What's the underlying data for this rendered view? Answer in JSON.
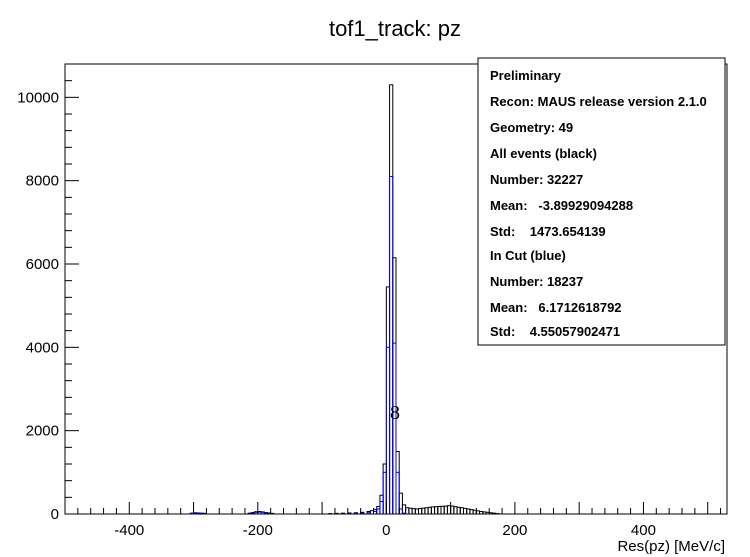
{
  "chart_data": {
    "type": "bar",
    "title": "tof1_track: pz",
    "xlabel": "Res(pz) [MeV/c]",
    "ylabel": "",
    "xlim": [
      -500,
      530
    ],
    "ylim": [
      0,
      10800
    ],
    "x_ticks": [
      -400,
      -200,
      0,
      200,
      400
    ],
    "y_ticks": [
      0,
      2000,
      4000,
      6000,
      8000,
      10000
    ],
    "bin_width": 5,
    "grid": false,
    "legend": "top-right",
    "annotation": "8",
    "stats_box": [
      "Preliminary",
      "Recon: MAUS release version 2.1.0",
      "Geometry: 49",
      "All events (black)",
      "Number: 32227",
      "Mean:   -3.89929094288",
      "Std:    1473.654139",
      "In Cut (blue)",
      "Number: 18237",
      "Mean:   6.1712618792",
      "Std:    4.55057902471"
    ],
    "series": [
      {
        "color": "#000000",
        "bins": [
          [
            -305,
            20
          ],
          [
            -300,
            30
          ],
          [
            -295,
            25
          ],
          [
            -290,
            20
          ],
          [
            -285,
            15
          ],
          [
            -215,
            20
          ],
          [
            -210,
            35
          ],
          [
            -205,
            55
          ],
          [
            -200,
            60
          ],
          [
            -195,
            50
          ],
          [
            -190,
            35
          ],
          [
            -185,
            25
          ],
          [
            -180,
            15
          ],
          [
            -90,
            10
          ],
          [
            -80,
            15
          ],
          [
            -70,
            20
          ],
          [
            -60,
            25
          ],
          [
            -50,
            30
          ],
          [
            -40,
            40
          ],
          [
            -30,
            60
          ],
          [
            -25,
            80
          ],
          [
            -20,
            110
          ],
          [
            -15,
            180
          ],
          [
            -10,
            450
          ],
          [
            -5,
            1200
          ],
          [
            0,
            5450
          ],
          [
            5,
            10300
          ],
          [
            10,
            6150
          ],
          [
            15,
            1500
          ],
          [
            20,
            500
          ],
          [
            25,
            220
          ],
          [
            30,
            150
          ],
          [
            35,
            140
          ],
          [
            40,
            130
          ],
          [
            45,
            120
          ],
          [
            50,
            130
          ],
          [
            55,
            140
          ],
          [
            60,
            150
          ],
          [
            65,
            160
          ],
          [
            70,
            170
          ],
          [
            75,
            175
          ],
          [
            80,
            180
          ],
          [
            85,
            185
          ],
          [
            90,
            190
          ],
          [
            95,
            200
          ],
          [
            100,
            190
          ],
          [
            105,
            175
          ],
          [
            110,
            160
          ],
          [
            115,
            150
          ],
          [
            120,
            135
          ],
          [
            125,
            120
          ],
          [
            130,
            105
          ],
          [
            135,
            90
          ],
          [
            140,
            75
          ],
          [
            145,
            60
          ],
          [
            150,
            50
          ],
          [
            155,
            40
          ],
          [
            160,
            30
          ],
          [
            165,
            20
          ],
          [
            170,
            10
          ]
        ]
      },
      {
        "color": "#0000ff",
        "bins": [
          [
            -305,
            15
          ],
          [
            -300,
            25
          ],
          [
            -295,
            20
          ],
          [
            -290,
            15
          ],
          [
            -210,
            20
          ],
          [
            -205,
            40
          ],
          [
            -200,
            45
          ],
          [
            -195,
            40
          ],
          [
            -190,
            25
          ],
          [
            -60,
            10
          ],
          [
            -50,
            15
          ],
          [
            -40,
            20
          ],
          [
            -30,
            30
          ],
          [
            -20,
            60
          ],
          [
            -15,
            120
          ],
          [
            -10,
            300
          ],
          [
            -5,
            1000
          ],
          [
            0,
            4000
          ],
          [
            5,
            8100
          ],
          [
            10,
            4100
          ],
          [
            15,
            1000
          ],
          [
            20,
            120
          ],
          [
            25,
            20
          ]
        ]
      }
    ]
  }
}
